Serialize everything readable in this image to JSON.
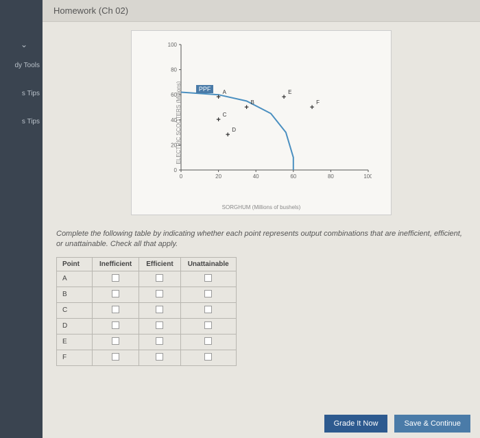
{
  "sidebar": {
    "items": [
      {
        "label": "dy Tools"
      },
      {
        "label": "s Tips"
      },
      {
        "label": "s Tips"
      }
    ]
  },
  "header": {
    "title": "Homework (Ch 02)"
  },
  "chart": {
    "type": "line",
    "ylabel": "ELECTRIC SCOOTERS (Millions)",
    "xlabel": "SORGHUM (Millions of bushels)",
    "xlim": [
      0,
      100
    ],
    "ylim": [
      0,
      100
    ],
    "xtick_step": 20,
    "ytick_step": 20,
    "ppf_label": "PPF",
    "ppf_color": "#4a8fc0",
    "ppf_points": [
      {
        "x": 0,
        "y": 62
      },
      {
        "x": 20,
        "y": 60
      },
      {
        "x": 35,
        "y": 55
      },
      {
        "x": 48,
        "y": 45
      },
      {
        "x": 56,
        "y": 30
      },
      {
        "x": 60,
        "y": 10
      },
      {
        "x": 60,
        "y": 0
      }
    ],
    "marker_color": "#333333",
    "points": [
      {
        "id": "A",
        "x": 20,
        "y": 58
      },
      {
        "id": "B",
        "x": 35,
        "y": 50
      },
      {
        "id": "C",
        "x": 20,
        "y": 40
      },
      {
        "id": "D",
        "x": 25,
        "y": 28
      },
      {
        "id": "E",
        "x": 55,
        "y": 58
      },
      {
        "id": "F",
        "x": 70,
        "y": 50
      }
    ],
    "background_color": "#f8f7f4",
    "axis_color": "#555555"
  },
  "instruction": "Complete the following table by indicating whether each point represents output combinations that are inefficient, efficient, or unattainable. Check all that apply.",
  "table": {
    "columns": [
      "Point",
      "Inefficient",
      "Efficient",
      "Unattainable"
    ],
    "rows": [
      "A",
      "B",
      "C",
      "D",
      "E",
      "F"
    ]
  },
  "buttons": {
    "grade": "Grade It Now",
    "save": "Save & Continue"
  }
}
